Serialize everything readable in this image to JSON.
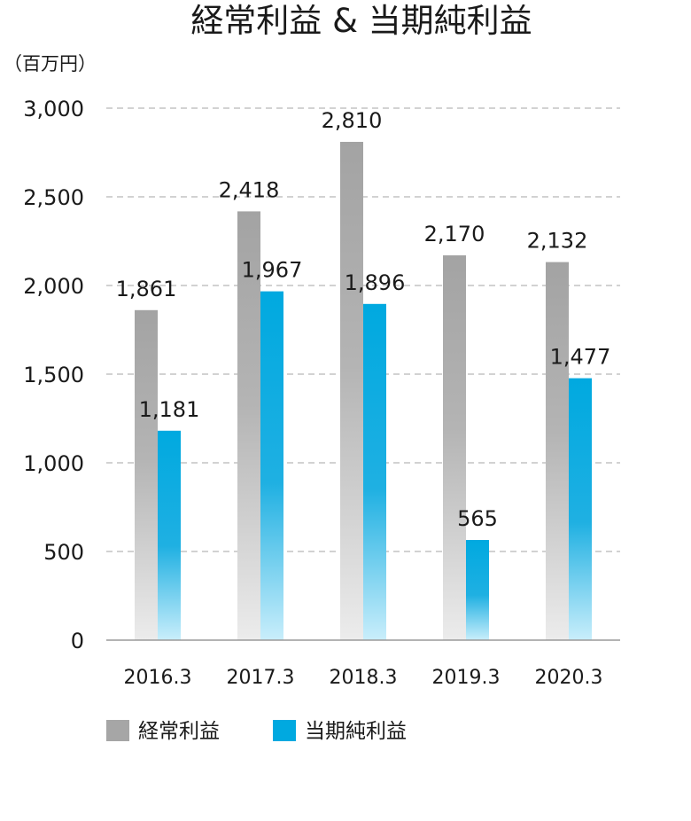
{
  "chart_data": {
    "type": "bar",
    "title": "経常利益 & 当期純利益",
    "unit_label": "（百万円）",
    "categories": [
      "2016.3",
      "2017.3",
      "2018.3",
      "2019.3",
      "2020.3"
    ],
    "series": [
      {
        "name": "経常利益",
        "values": [
          1861,
          2418,
          2810,
          2170,
          2132
        ],
        "labels": [
          "1,861",
          "2,418",
          "2,810",
          "2,170",
          "2,132"
        ],
        "color": "#a6a6a6"
      },
      {
        "name": "当期純利益",
        "values": [
          1181,
          1967,
          1896,
          565,
          1477
        ],
        "labels": [
          "1,181",
          "1,967",
          "1,896",
          "565",
          "1,477"
        ],
        "color": "#00a9e0"
      }
    ],
    "ylim": [
      0,
      3000
    ],
    "yticks": [
      0,
      500,
      1000,
      1500,
      2000,
      2500,
      3000
    ],
    "ytick_labels": [
      "0",
      "500",
      "1,000",
      "1,500",
      "2,000",
      "2,500",
      "3,000"
    ],
    "grid": true,
    "legend_position": "bottom-left"
  }
}
